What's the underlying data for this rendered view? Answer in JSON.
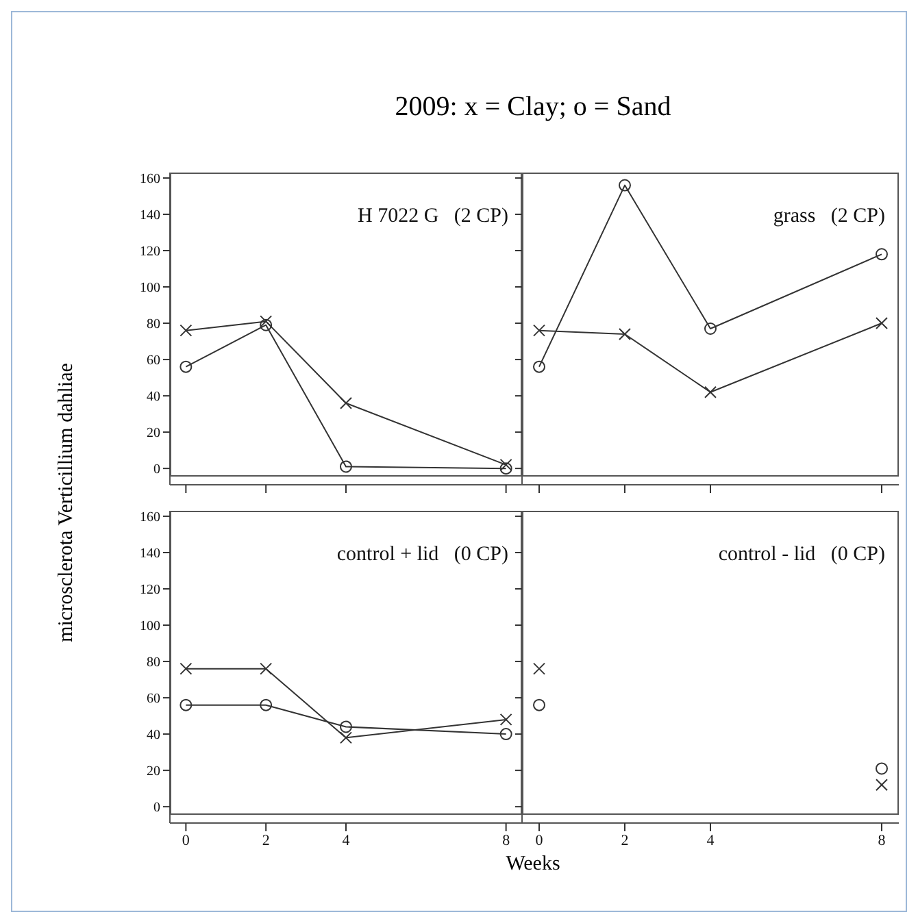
{
  "chart_data": [
    {
      "type": "line",
      "title": "2009:  x = Clay;  o = Sand",
      "ylabel": "microsclerota Verticillium dahliae",
      "annotations": [
        "H 7022 G   (2 CP)"
      ],
      "x": [
        0,
        2,
        4,
        8
      ],
      "xlim": [
        -0.4,
        8.4
      ],
      "xticks": [
        0,
        2,
        4,
        8
      ],
      "ylim": [
        -9,
        163
      ],
      "yticks": [
        0,
        20,
        40,
        60,
        80,
        100,
        120,
        140,
        160
      ],
      "tick_labels": "y",
      "series": [
        {
          "color": "#333333",
          "marker": "cross",
          "values": [
            76,
            81,
            36,
            2
          ]
        },
        {
          "color": "#333333",
          "marker": "circle",
          "values": [
            56,
            79,
            1,
            0
          ]
        }
      ]
    },
    {
      "type": "line",
      "annotations": [
        "grass   (2 CP)"
      ],
      "x": [
        0,
        2,
        4,
        8
      ],
      "xlim": [
        -0.4,
        8.4
      ],
      "xticks": [
        0,
        2,
        4,
        8
      ],
      "ylim": [
        -9,
        163
      ],
      "yticks": [
        0,
        20,
        40,
        60,
        80,
        100,
        120,
        140,
        160
      ],
      "tick_labels": false,
      "series": [
        {
          "color": "#333333",
          "marker": "cross",
          "values": [
            76,
            74,
            42,
            80
          ]
        },
        {
          "color": "#333333",
          "marker": "circle",
          "values": [
            56,
            156,
            77,
            118
          ]
        }
      ]
    },
    {
      "type": "line",
      "xlabel": "Weeks",
      "annotations": [
        "control + lid   (0 CP)"
      ],
      "x": [
        0,
        2,
        4,
        8
      ],
      "xlim": [
        -0.4,
        8.4
      ],
      "xticks": [
        0,
        2,
        4,
        8
      ],
      "ylim": [
        -9,
        163
      ],
      "yticks": [
        0,
        20,
        40,
        60,
        80,
        100,
        120,
        140,
        160
      ],
      "series": [
        {
          "color": "#333333",
          "marker": "cross",
          "values": [
            76,
            76,
            38,
            48
          ]
        },
        {
          "color": "#333333",
          "marker": "circle",
          "values": [
            56,
            56,
            44,
            40
          ]
        }
      ]
    },
    {
      "type": "scatter",
      "annotations": [
        "control - lid   (0 CP)"
      ],
      "x": [
        0,
        2,
        4,
        8
      ],
      "xlim": [
        -0.4,
        8.4
      ],
      "xticks": [
        0,
        2,
        4,
        8
      ],
      "ylim": [
        -9,
        163
      ],
      "yticks": [
        0,
        20,
        40,
        60,
        80,
        100,
        120,
        140,
        160
      ],
      "tick_labels": "x",
      "series": [
        {
          "color": "#333333",
          "marker": "cross",
          "values": [
            76,
            null,
            null,
            12
          ]
        },
        {
          "color": "#333333",
          "marker": "circle",
          "values": [
            56,
            null,
            null,
            21
          ]
        }
      ]
    }
  ]
}
